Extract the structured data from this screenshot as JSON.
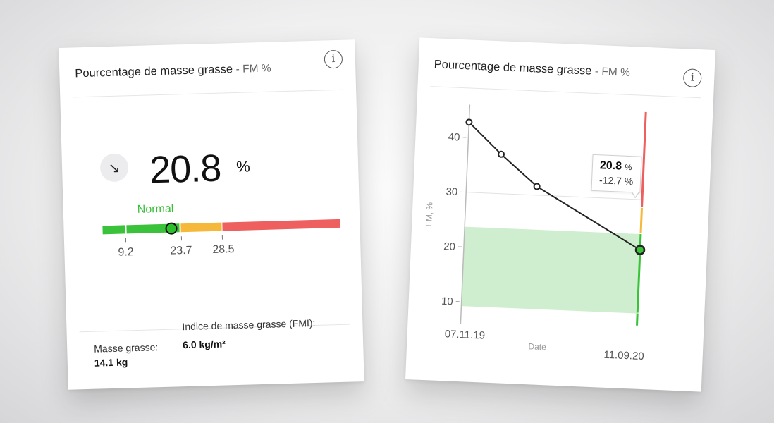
{
  "left_card": {
    "title": "Pourcentage de masse grasse",
    "title_suffix": "- FM %",
    "info_icon": "info-icon",
    "trend_icon": "arrow-down-right-icon",
    "trend_glyph": "↘",
    "value": "20.8",
    "unit": "%",
    "range_label": "Normal",
    "progress_value": 20.8,
    "thresholds": [
      "9.2",
      "23.7",
      "28.5"
    ],
    "stats": [
      {
        "label": "Masse grasse:",
        "value": "14.1 kg"
      },
      {
        "label": "Indice de masse grasse (FMI):",
        "value": "6.0 kg/m²"
      }
    ],
    "colors": {
      "green": "#3ac23a",
      "yellow": "#f5b83a",
      "red": "#ee5f5f"
    }
  },
  "right_card": {
    "title": "Pourcentage de masse grasse",
    "title_suffix": "- FM %",
    "info_icon": "info-icon",
    "tooltip": {
      "value": "20.8",
      "unit": "%",
      "delta": "-12.7 %"
    }
  },
  "chart_data": {
    "type": "line",
    "xlabel": "Date",
    "ylabel": "FM, %",
    "x_tick_labels": [
      "07.11.19",
      "11.09.20"
    ],
    "y_ticks": [
      10,
      20,
      30,
      40
    ],
    "ylim": [
      7,
      46
    ],
    "series": [
      {
        "values": [
          42.8,
          37.2,
          31.6,
          20.8
        ],
        "x_fraction": [
          0,
          0.19,
          0.4,
          1
        ]
      }
    ],
    "normal_band": {
      "from": 9.2,
      "to": 23.7
    },
    "grid_line": 30,
    "colors": {
      "line": "#222222",
      "band": "#cfeecf",
      "green": "#3ac23a",
      "yellow": "#f5b83a",
      "red": "#ee5f5f"
    }
  }
}
